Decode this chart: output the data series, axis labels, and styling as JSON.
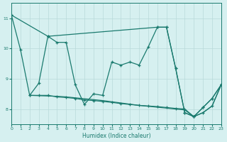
{
  "background_color": "#d6f0f0",
  "grid_color": "#b8dada",
  "line_color": "#1a7a6e",
  "xlabel": "Humidex (Indice chaleur)",
  "xlim": [
    0,
    23
  ],
  "ylim": [
    7.5,
    11.5
  ],
  "yticks": [
    8,
    9,
    10,
    11
  ],
  "xticks": [
    0,
    1,
    2,
    3,
    4,
    5,
    6,
    7,
    8,
    9,
    10,
    11,
    12,
    13,
    14,
    15,
    16,
    17,
    18,
    19,
    20,
    21,
    22,
    23
  ],
  "line1_x": [
    0,
    1,
    2,
    3,
    4,
    5,
    6,
    7,
    8,
    9,
    10,
    11,
    12,
    13,
    14,
    15,
    16,
    17,
    18,
    19,
    20,
    21,
    22,
    23
  ],
  "line1_y": [
    11.1,
    9.95,
    8.45,
    8.85,
    10.4,
    10.2,
    10.2,
    8.8,
    8.15,
    8.5,
    8.45,
    9.55,
    9.45,
    9.55,
    9.45,
    10.05,
    10.7,
    10.7,
    9.35,
    7.88,
    7.75,
    8.05,
    8.35,
    8.8
  ],
  "line2_x": [
    0,
    4,
    16,
    17,
    18,
    19,
    20,
    21,
    22,
    23
  ],
  "line2_y": [
    11.1,
    10.4,
    10.7,
    10.7,
    9.35,
    7.88,
    7.75,
    8.05,
    8.35,
    8.8
  ],
  "line3_x": [
    2,
    3,
    4,
    5,
    6,
    7,
    8,
    9,
    10,
    11,
    12,
    13,
    14,
    15,
    16,
    17,
    18,
    19,
    20,
    21,
    22,
    23
  ],
  "line3_y": [
    8.45,
    8.45,
    8.45,
    8.4,
    8.38,
    8.35,
    8.3,
    8.28,
    8.25,
    8.22,
    8.18,
    8.15,
    8.12,
    8.1,
    8.08,
    8.05,
    8.02,
    8.0,
    7.75,
    7.88,
    8.1,
    8.8
  ],
  "line4_x": [
    2,
    3,
    4,
    5,
    6,
    7,
    8,
    9,
    10,
    11,
    12,
    13,
    14,
    15,
    16,
    17,
    18,
    19,
    20,
    21,
    22,
    23
  ],
  "line4_y": [
    8.45,
    8.44,
    8.43,
    8.42,
    8.4,
    8.37,
    8.34,
    8.31,
    8.28,
    8.24,
    8.2,
    8.16,
    8.12,
    8.09,
    8.06,
    8.03,
    8.0,
    7.97,
    7.75,
    7.88,
    8.1,
    8.8
  ]
}
